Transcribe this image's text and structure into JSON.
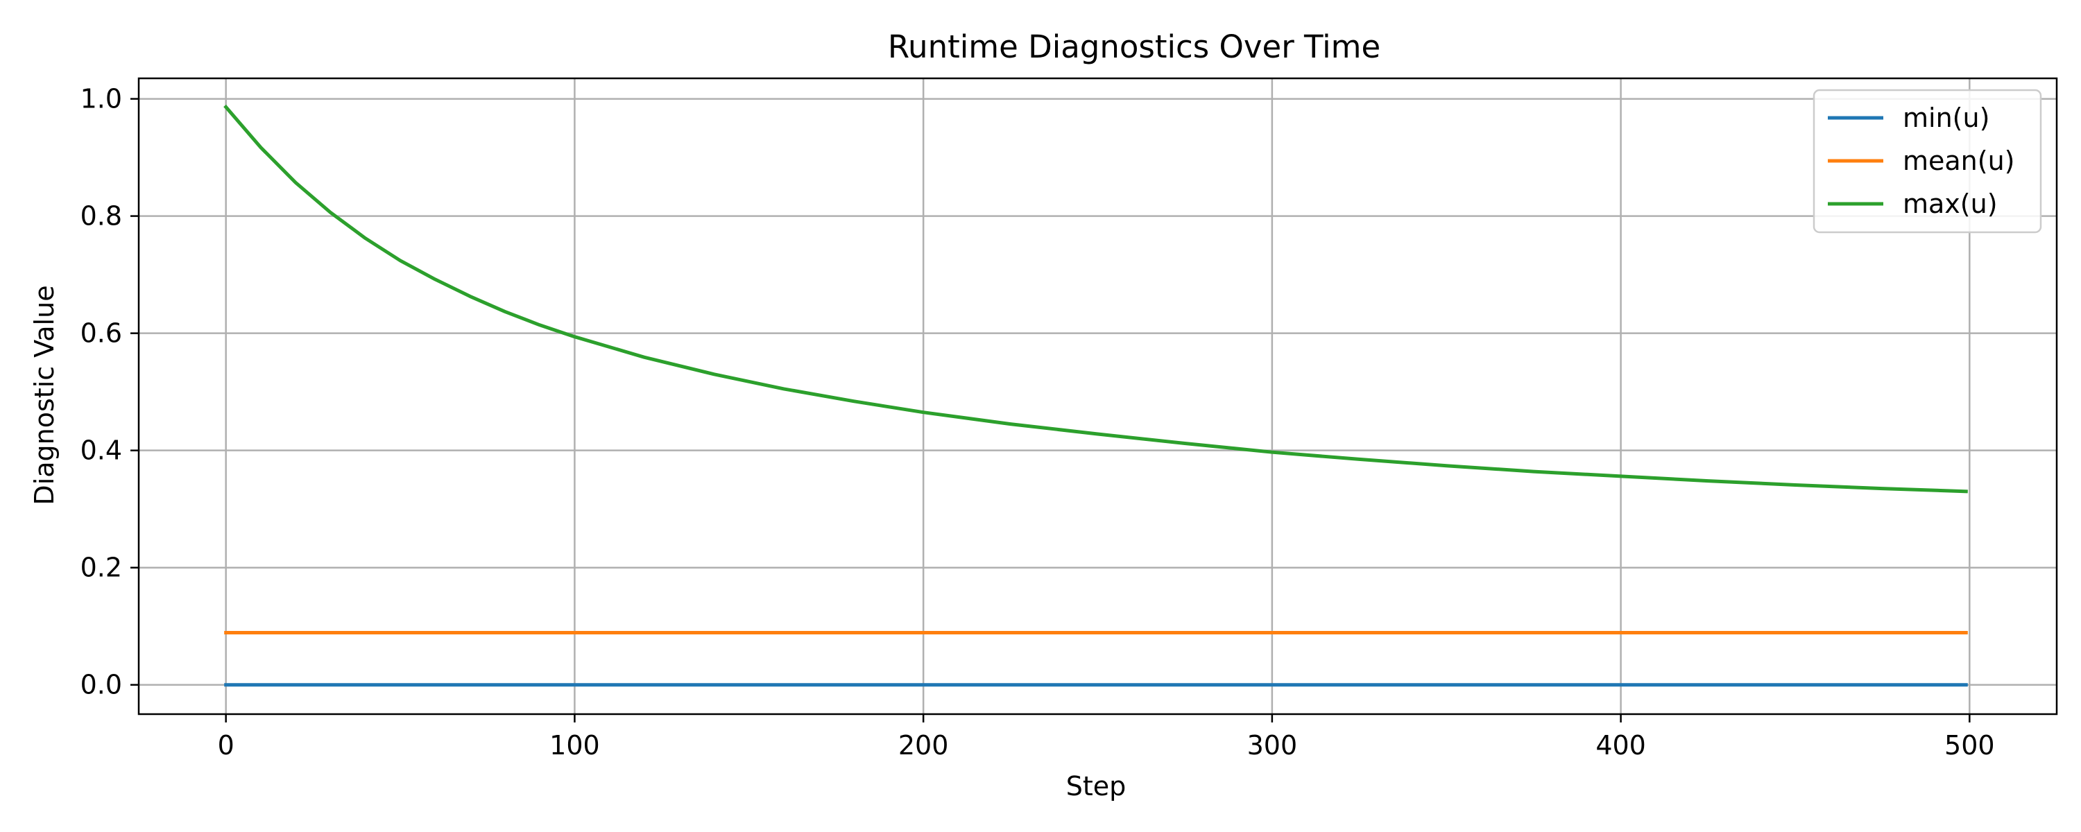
{
  "chart_data": {
    "type": "line",
    "title": "Runtime Diagnostics Over Time",
    "xlabel": "Step",
    "ylabel": "Diagnostic Value",
    "xlim": [
      -25,
      525
    ],
    "ylim": [
      -0.05,
      1.035
    ],
    "xticks": [
      0,
      100,
      200,
      300,
      400,
      500
    ],
    "yticks": [
      0.0,
      0.2,
      0.4,
      0.6,
      0.8,
      1.0
    ],
    "xtick_labels": [
      "0",
      "100",
      "200",
      "300",
      "400",
      "500"
    ],
    "ytick_labels": [
      "0.0",
      "0.2",
      "0.4",
      "0.6",
      "0.8",
      "1.0"
    ],
    "grid": true,
    "legend_position": "top-right",
    "x": [
      0,
      10,
      20,
      30,
      40,
      50,
      60,
      70,
      80,
      90,
      100,
      120,
      140,
      160,
      180,
      200,
      225,
      250,
      275,
      300,
      325,
      350,
      375,
      400,
      425,
      450,
      475,
      499
    ],
    "series": [
      {
        "name": "min(u)",
        "color": "#1f77b4",
        "values": [
          0.0,
          0.0,
          0.0,
          0.0,
          0.0,
          0.0,
          0.0,
          0.0,
          0.0,
          0.0,
          0.0,
          0.0,
          0.0,
          0.0,
          0.0,
          0.0,
          0.0,
          0.0,
          0.0,
          0.0,
          0.0,
          0.0,
          0.0,
          0.0,
          0.0,
          0.0,
          0.0,
          0.0
        ]
      },
      {
        "name": "mean(u)",
        "color": "#ff7f0e",
        "values": [
          0.089,
          0.089,
          0.089,
          0.089,
          0.089,
          0.089,
          0.089,
          0.089,
          0.089,
          0.089,
          0.089,
          0.089,
          0.089,
          0.089,
          0.089,
          0.089,
          0.089,
          0.089,
          0.089,
          0.089,
          0.089,
          0.089,
          0.089,
          0.089,
          0.089,
          0.089,
          0.089,
          0.089
        ]
      },
      {
        "name": "max(u)",
        "color": "#2ca02c",
        "values": [
          0.986,
          0.917,
          0.857,
          0.806,
          0.762,
          0.724,
          0.692,
          0.663,
          0.637,
          0.614,
          0.594,
          0.559,
          0.53,
          0.505,
          0.484,
          0.465,
          0.445,
          0.428,
          0.412,
          0.397,
          0.385,
          0.374,
          0.364,
          0.356,
          0.348,
          0.341,
          0.335,
          0.33
        ]
      }
    ]
  }
}
